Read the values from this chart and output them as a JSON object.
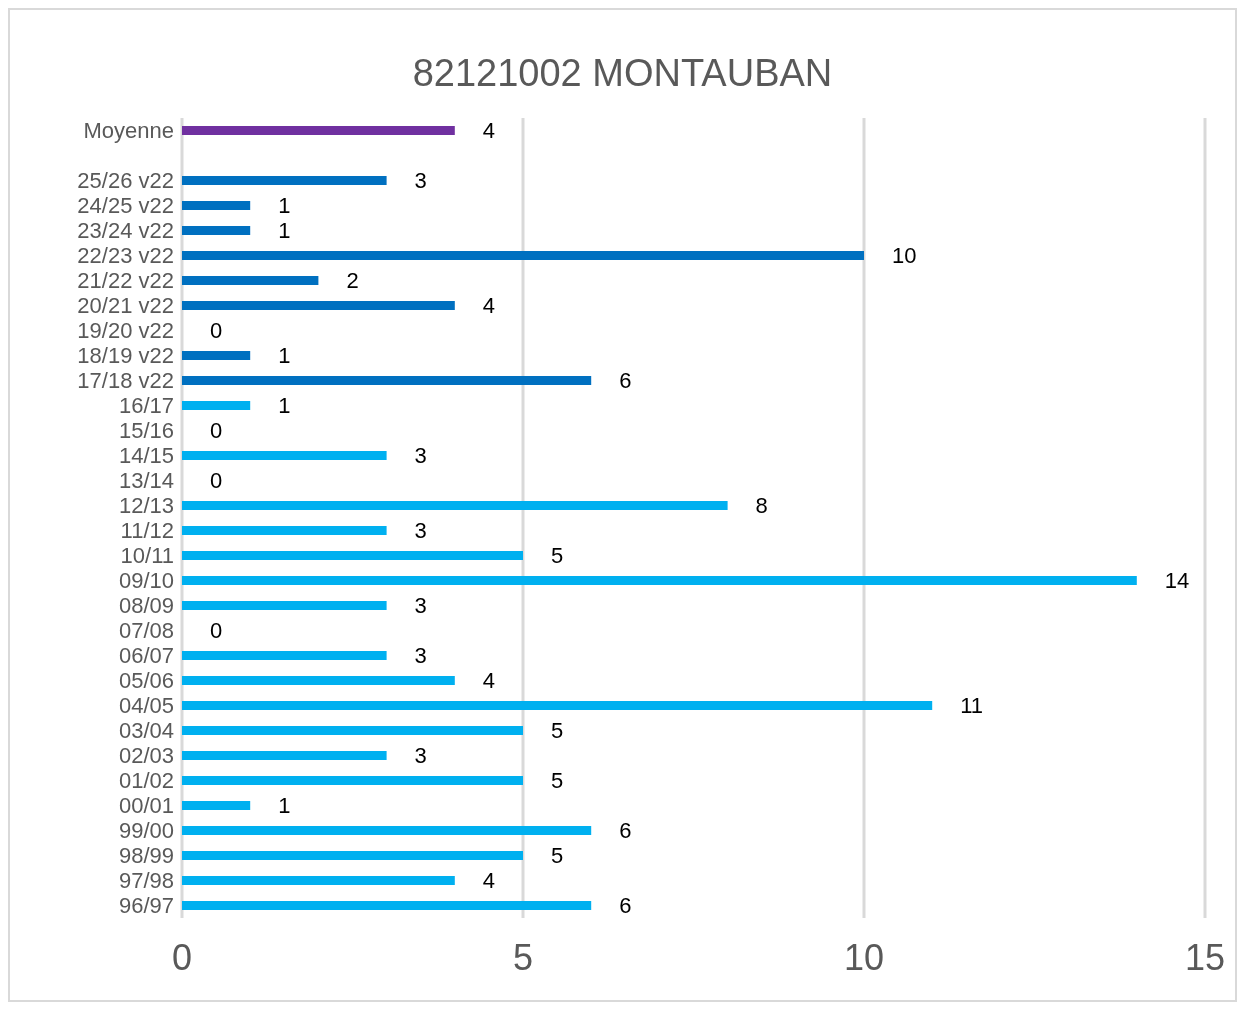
{
  "chart_data": {
    "type": "bar",
    "orientation": "horizontal",
    "title": "82121002 MONTAUBAN",
    "categories": [
      "Moyenne",
      null,
      "25/26 v22",
      "24/25 v22",
      "23/24 v22",
      "22/23 v22",
      "21/22 v22",
      "20/21 v22",
      "19/20 v22",
      "18/19 v22",
      "17/18 v22",
      "16/17",
      "15/16",
      "14/15",
      "13/14",
      "12/13",
      "11/12",
      "10/11",
      "09/10",
      "08/09",
      "07/08",
      "06/07",
      "05/06",
      "04/05",
      "03/04",
      "02/03",
      "01/02",
      "00/01",
      "99/00",
      "98/99",
      "97/98",
      "96/97"
    ],
    "values": [
      4,
      null,
      3,
      1,
      1,
      10,
      2,
      4,
      0,
      1,
      6,
      1,
      0,
      3,
      0,
      8,
      3,
      5,
      14,
      3,
      0,
      3,
      4,
      11,
      5,
      3,
      5,
      1,
      6,
      5,
      4,
      6
    ],
    "colors": [
      "#7030a0",
      null,
      "#0070c0",
      "#0070c0",
      "#0070c0",
      "#0070c0",
      "#0070c0",
      "#0070c0",
      "#0070c0",
      "#0070c0",
      "#0070c0",
      "#00b0f0",
      "#00b0f0",
      "#00b0f0",
      "#00b0f0",
      "#00b0f0",
      "#00b0f0",
      "#00b0f0",
      "#00b0f0",
      "#00b0f0",
      "#00b0f0",
      "#00b0f0",
      "#00b0f0",
      "#00b0f0",
      "#00b0f0",
      "#00b0f0",
      "#00b0f0",
      "#00b0f0",
      "#00b0f0",
      "#00b0f0",
      "#00b0f0",
      "#00b0f0"
    ],
    "xlim": [
      0,
      15
    ],
    "xticks": [
      0,
      5,
      10,
      15
    ],
    "grid": "x",
    "data_labels": true,
    "legend": false
  }
}
